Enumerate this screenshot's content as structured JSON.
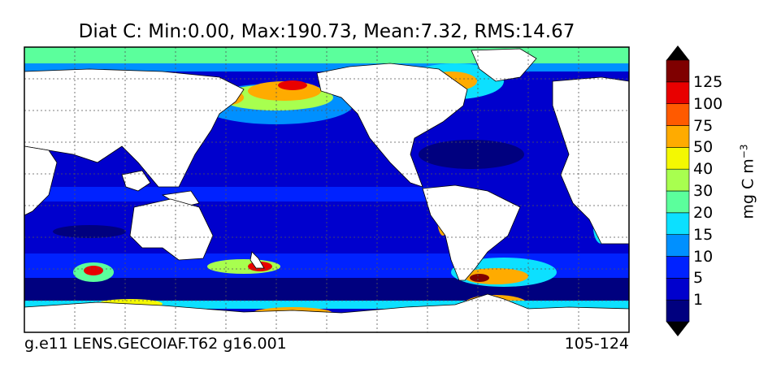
{
  "title": "Diat C: Min:0.00, Max:190.73, Mean:7.32, RMS:14.67",
  "footer": {
    "left": "g.e11 LENS.GECOIAF.T62 g16.001",
    "right": "105-124"
  },
  "colorbar": {
    "units_base": "mg C m",
    "units_exp": "−3",
    "levels": [
      "1",
      "5",
      "10",
      "15",
      "20",
      "30",
      "40",
      "50",
      "75",
      "100",
      "125"
    ],
    "colors": [
      "#00007f",
      "#0000cd",
      "#0022ff",
      "#0090ff",
      "#0ce0ff",
      "#5bff9c",
      "#a8ff4f",
      "#f4f802",
      "#ffab00",
      "#ff5a00",
      "#e80000",
      "#7f0000"
    ]
  },
  "colors": {
    "ocean_base": "#0000cd",
    "land": "#ffffff",
    "grid": "#555555"
  }
}
